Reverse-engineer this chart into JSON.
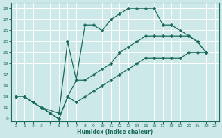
{
  "xlabel": "Humidex (Indice chaleur)",
  "bg_color": "#cde8e8",
  "grid_color": "#ffffff",
  "line_color": "#1a6b5a",
  "xlim": [
    -0.5,
    23.5
  ],
  "ylim": [
    8.5,
    30
  ],
  "xticks": [
    0,
    1,
    2,
    3,
    4,
    5,
    6,
    7,
    8,
    9,
    10,
    11,
    12,
    13,
    14,
    15,
    16,
    17,
    18,
    19,
    20,
    21,
    22,
    23
  ],
  "yticks": [
    9,
    11,
    13,
    15,
    17,
    19,
    21,
    23,
    25,
    27,
    29
  ],
  "line_top_x": [
    0,
    1,
    2,
    3,
    5,
    6,
    7,
    8,
    9,
    10,
    11,
    12,
    13,
    14,
    15,
    16,
    17,
    18,
    19,
    20,
    21,
    22
  ],
  "line_top_y": [
    13,
    13,
    12,
    11,
    10,
    23,
    16,
    26,
    26,
    25,
    27,
    28,
    29,
    29,
    29,
    29,
    26,
    26,
    25,
    24,
    23,
    21
  ],
  "line_mid_x": [
    0,
    1,
    2,
    3,
    4,
    5,
    6,
    7,
    8,
    9,
    10,
    11,
    12,
    13,
    14,
    15,
    16,
    17,
    18,
    19,
    20,
    21,
    22
  ],
  "line_mid_y": [
    13,
    13,
    12,
    11,
    10,
    9,
    13,
    16,
    16,
    17,
    18,
    19,
    21,
    22,
    23,
    24,
    24,
    24,
    24,
    24,
    24,
    23,
    21
  ],
  "line_bot_x": [
    0,
    1,
    2,
    3,
    4,
    5,
    6,
    7,
    8,
    9,
    10,
    11,
    12,
    13,
    14,
    15,
    16,
    17,
    18,
    19,
    20,
    21,
    22
  ],
  "line_bot_y": [
    13,
    13,
    12,
    11,
    10,
    9,
    13,
    12,
    13,
    14,
    15,
    16,
    17,
    18,
    19,
    20,
    20,
    20,
    20,
    20,
    21,
    21,
    21
  ]
}
